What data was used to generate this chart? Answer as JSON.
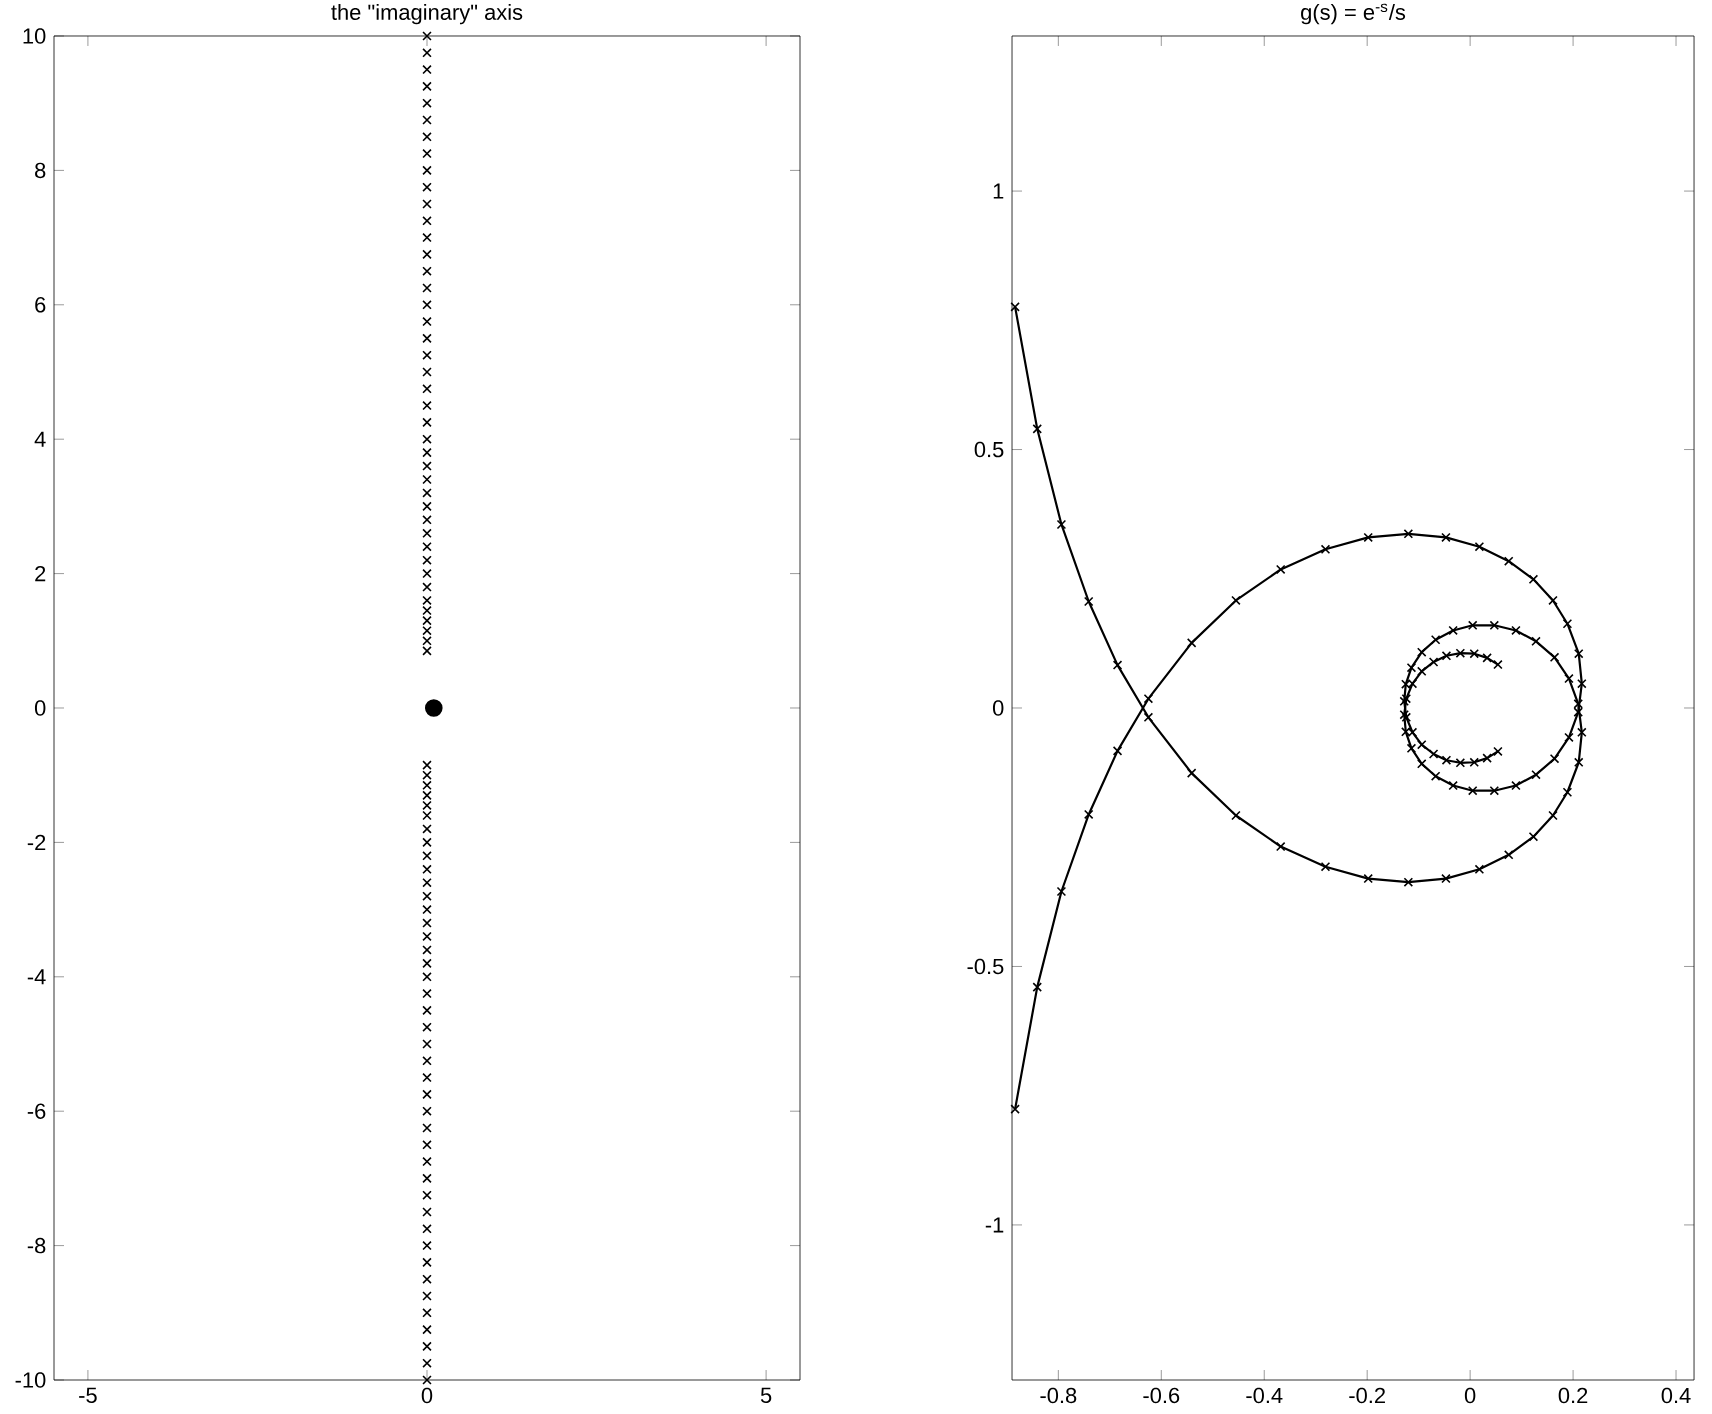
{
  "chart_data": [
    {
      "type": "scatter",
      "title": "the \"imaginary\" axis",
      "marker": "cross",
      "xlim": [
        -5.5,
        5.5
      ],
      "ylim": [
        -10,
        10
      ],
      "xticks": [
        -5,
        0,
        5
      ],
      "yticks": [
        -10,
        -8,
        -6,
        -4,
        -2,
        0,
        2,
        4,
        6,
        8,
        10
      ],
      "grid": false,
      "series": [
        {
          "color": "#000000",
          "x": [
            0,
            0,
            0,
            0,
            0,
            0,
            0,
            0,
            0,
            0,
            0,
            0,
            0,
            0,
            0,
            0,
            0,
            0,
            0,
            0,
            0,
            0,
            0,
            0,
            0,
            0,
            0,
            0,
            0,
            0,
            0,
            0,
            0,
            0,
            0,
            0,
            0,
            0,
            0,
            0,
            0,
            0
          ],
          "values": [
            -0.85,
            -1.0,
            -1.15,
            -1.3,
            -1.45,
            -1.6,
            -1.8,
            -2.0,
            -2.2,
            -2.4,
            -2.6,
            -2.8,
            -3.0,
            -3.2,
            -3.4,
            -3.6,
            -3.8,
            -4.0,
            -4.25,
            -4.5,
            -4.75,
            -5.0,
            -5.25,
            -5.5,
            -5.75,
            -6.0,
            -6.25,
            -6.5,
            -6.75,
            -7.0,
            -7.25,
            -7.5,
            -7.75,
            -8.0,
            -8.25,
            -8.5,
            -8.75,
            -9.0,
            -9.25,
            -9.5,
            -9.75,
            -10.0
          ]
        },
        {
          "color": "#000000",
          "x": [
            0,
            0,
            0,
            0,
            0,
            0,
            0,
            0,
            0,
            0,
            0,
            0,
            0,
            0,
            0,
            0,
            0,
            0,
            0,
            0,
            0,
            0,
            0,
            0,
            0,
            0,
            0,
            0,
            0,
            0,
            0,
            0,
            0,
            0,
            0,
            0,
            0,
            0,
            0,
            0,
            0,
            0
          ],
          "values": [
            0.85,
            1.0,
            1.15,
            1.3,
            1.45,
            1.6,
            1.8,
            2.0,
            2.2,
            2.4,
            2.6,
            2.8,
            3.0,
            3.2,
            3.4,
            3.6,
            3.8,
            4.0,
            4.25,
            4.5,
            4.75,
            5.0,
            5.25,
            5.5,
            5.75,
            6.0,
            6.25,
            6.5,
            6.75,
            7.0,
            7.25,
            7.5,
            7.75,
            8.0,
            8.25,
            8.5,
            8.75,
            9.0,
            9.25,
            9.5,
            9.75,
            10.0
          ]
        },
        {
          "type": "scatter",
          "marker": "circle",
          "color": "#000000",
          "x": [
            0.1
          ],
          "values": [
            0
          ]
        }
      ]
    },
    {
      "type": "line",
      "title": "g(s) = e$^{-s}$/s",
      "marker": "cross",
      "xlim": [
        -0.89,
        0.435
      ],
      "ylim": [
        -1.3,
        1.3
      ],
      "xticks": [
        -0.8,
        -0.6,
        -0.4,
        -0.2,
        0,
        0.2,
        0.4
      ],
      "yticks": [
        -1,
        -0.5,
        0,
        0.5,
        1
      ],
      "grid": false,
      "series": [
        {
          "color": "#000000",
          "x": [
            -0.884,
            -0.841,
            -0.794,
            -0.741,
            -0.685,
            -0.625,
            -0.541,
            -0.455,
            -0.368,
            -0.281,
            -0.198,
            -0.12,
            -0.047,
            0.018,
            0.075,
            0.123,
            0.161,
            0.189,
            0.211,
            0.217,
            0.21,
            0.192,
            0.164,
            0.128,
            0.089,
            0.047,
            0.005,
            -0.033,
            -0.067,
            -0.094,
            -0.114,
            -0.125,
            -0.128,
            -0.124,
            -0.112,
            -0.094,
            -0.071,
            -0.046,
            -0.019,
            0.008,
            0.033,
            0.054
          ],
          "values": [
            0.776,
            0.54,
            0.355,
            0.206,
            0.083,
            -0.018,
            -0.126,
            -0.208,
            -0.268,
            -0.307,
            -0.33,
            -0.337,
            -0.33,
            -0.312,
            -0.284,
            -0.249,
            -0.208,
            -0.163,
            -0.105,
            -0.047,
            0.008,
            0.057,
            0.098,
            0.129,
            0.15,
            0.16,
            0.16,
            0.15,
            0.132,
            0.108,
            0.078,
            0.046,
            0.013,
            -0.018,
            -0.047,
            -0.071,
            -0.089,
            -0.101,
            -0.106,
            -0.105,
            -0.097,
            -0.084
          ]
        },
        {
          "color": "#000000",
          "x": [
            -0.884,
            -0.841,
            -0.794,
            -0.741,
            -0.685,
            -0.625,
            -0.541,
            -0.455,
            -0.368,
            -0.281,
            -0.198,
            -0.12,
            -0.047,
            0.018,
            0.075,
            0.123,
            0.161,
            0.189,
            0.211,
            0.217,
            0.21,
            0.192,
            0.164,
            0.128,
            0.089,
            0.047,
            0.005,
            -0.033,
            -0.067,
            -0.094,
            -0.114,
            -0.125,
            -0.128,
            -0.124,
            -0.112,
            -0.094,
            -0.071,
            -0.046,
            -0.019,
            0.008,
            0.033,
            0.054
          ],
          "values": [
            -0.776,
            -0.54,
            -0.355,
            -0.206,
            -0.083,
            0.018,
            0.126,
            0.208,
            0.268,
            0.307,
            0.33,
            0.337,
            0.33,
            0.312,
            0.284,
            0.249,
            0.208,
            0.163,
            0.105,
            0.047,
            -0.008,
            -0.057,
            -0.098,
            -0.129,
            -0.15,
            -0.16,
            -0.16,
            -0.15,
            -0.132,
            -0.108,
            -0.078,
            -0.046,
            -0.013,
            0.018,
            0.047,
            0.071,
            0.089,
            0.101,
            0.106,
            0.105,
            0.097,
            0.084
          ]
        }
      ]
    }
  ]
}
